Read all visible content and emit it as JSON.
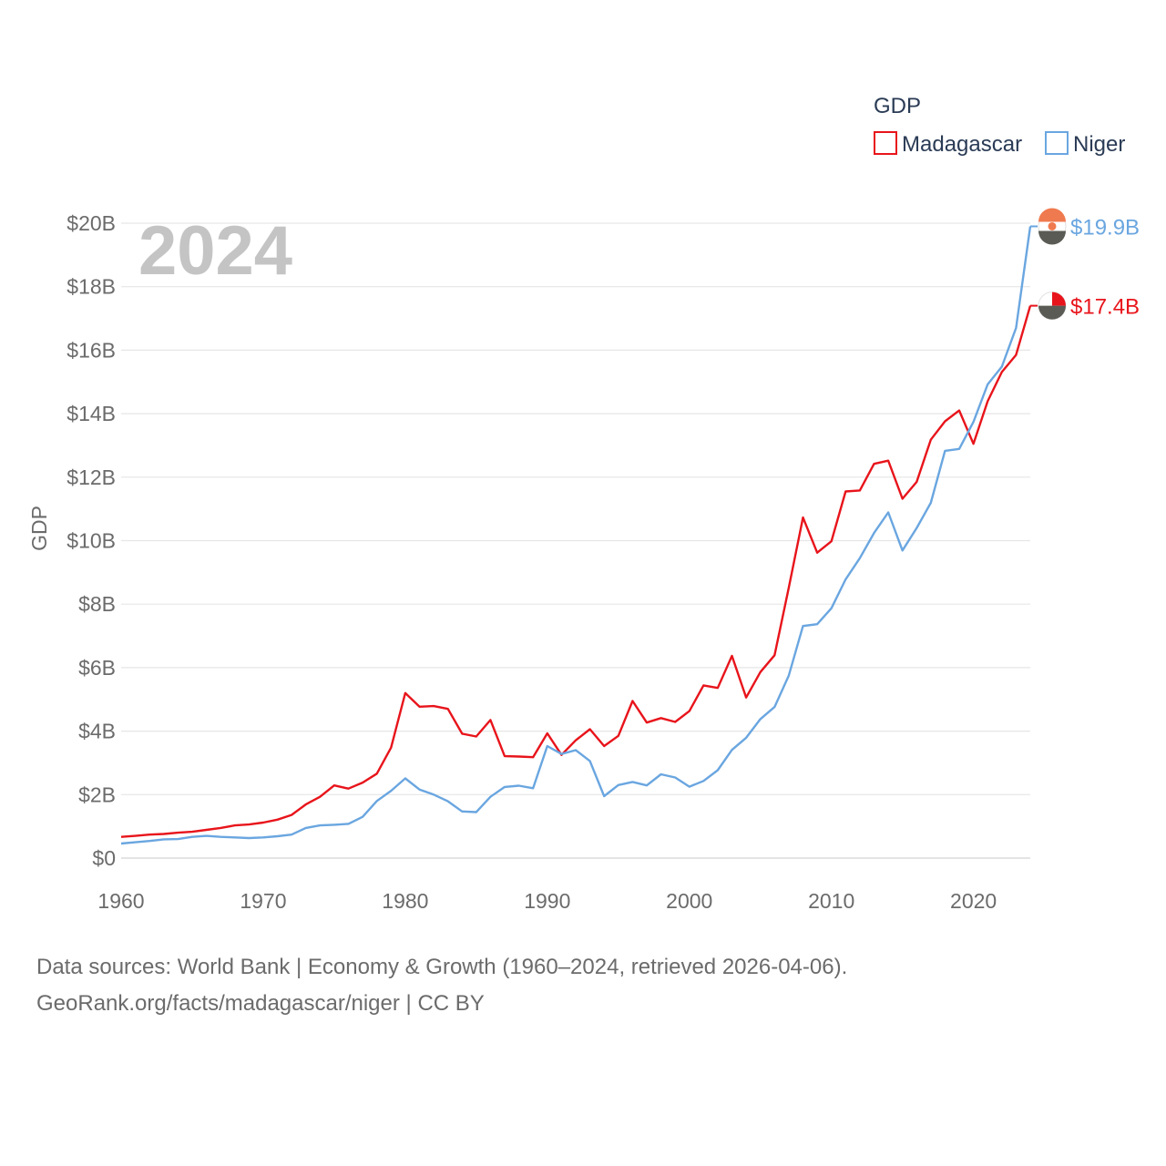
{
  "chart_data": {
    "type": "line",
    "title": "",
    "year_label": "2024",
    "xlabel": "",
    "ylabel": "GDP",
    "xlim": [
      1960,
      2024
    ],
    "ylim": [
      0,
      20
    ],
    "x_ticks": [
      1960,
      1970,
      1980,
      1990,
      2000,
      2010,
      2020
    ],
    "y_ticks": [
      {
        "value": 0,
        "label": "$0"
      },
      {
        "value": 2,
        "label": "$2B"
      },
      {
        "value": 4,
        "label": "$4B"
      },
      {
        "value": 6,
        "label": "$6B"
      },
      {
        "value": 8,
        "label": "$8B"
      },
      {
        "value": 10,
        "label": "$10B"
      },
      {
        "value": 12,
        "label": "$12B"
      },
      {
        "value": 14,
        "label": "$14B"
      },
      {
        "value": 16,
        "label": "$16B"
      },
      {
        "value": 18,
        "label": "$18B"
      },
      {
        "value": 20,
        "label": "$20B"
      }
    ],
    "legend_title": "GDP",
    "legend_position": "top-right",
    "x": [
      1960,
      1961,
      1962,
      1963,
      1964,
      1965,
      1966,
      1967,
      1968,
      1969,
      1970,
      1971,
      1972,
      1973,
      1974,
      1975,
      1976,
      1977,
      1978,
      1979,
      1980,
      1981,
      1982,
      1983,
      1984,
      1985,
      1986,
      1987,
      1988,
      1989,
      1990,
      1991,
      1992,
      1993,
      1994,
      1995,
      1996,
      1997,
      1998,
      1999,
      2000,
      2001,
      2002,
      2003,
      2004,
      2005,
      2006,
      2007,
      2008,
      2009,
      2010,
      2011,
      2012,
      2013,
      2014,
      2015,
      2016,
      2017,
      2018,
      2019,
      2020,
      2021,
      2022,
      2023,
      2024
    ],
    "series": [
      {
        "name": "Madagascar",
        "color": "#e8141b",
        "end_label": "$17.4B",
        "values": [
          0.67,
          0.7,
          0.74,
          0.76,
          0.8,
          0.83,
          0.89,
          0.95,
          1.03,
          1.06,
          1.12,
          1.21,
          1.36,
          1.69,
          1.93,
          2.29,
          2.19,
          2.38,
          2.66,
          3.48,
          5.2,
          4.77,
          4.79,
          4.7,
          3.92,
          3.83,
          4.35,
          3.21,
          3.2,
          3.18,
          3.93,
          3.25,
          3.71,
          4.06,
          3.53,
          3.85,
          4.95,
          4.27,
          4.41,
          4.29,
          4.63,
          5.44,
          5.36,
          6.37,
          5.06,
          5.86,
          6.39,
          8.52,
          10.73,
          9.62,
          9.98,
          11.55,
          11.58,
          12.42,
          12.52,
          11.32,
          11.85,
          13.18,
          13.76,
          14.1,
          13.05,
          14.39,
          15.31,
          15.85,
          17.4
        ]
      },
      {
        "name": "Niger",
        "color": "#6aa6e0",
        "end_label": "$19.9B",
        "values": [
          0.46,
          0.5,
          0.54,
          0.59,
          0.6,
          0.67,
          0.7,
          0.67,
          0.65,
          0.63,
          0.65,
          0.69,
          0.74,
          0.95,
          1.03,
          1.05,
          1.08,
          1.3,
          1.8,
          2.12,
          2.51,
          2.16,
          2.0,
          1.79,
          1.47,
          1.45,
          1.93,
          2.24,
          2.28,
          2.2,
          3.53,
          3.28,
          3.4,
          3.06,
          1.95,
          2.3,
          2.4,
          2.29,
          2.64,
          2.54,
          2.25,
          2.43,
          2.77,
          3.41,
          3.79,
          4.38,
          4.76,
          5.75,
          7.31,
          7.37,
          7.87,
          8.78,
          9.45,
          10.24,
          10.89,
          9.69,
          10.4,
          11.19,
          12.83,
          12.89,
          13.74,
          14.92,
          15.48,
          16.7,
          19.9
        ]
      }
    ]
  },
  "source": {
    "line1": "Data sources: World Bank | Economy & Growth (1960–2024, retrieved 2026-04-06).",
    "line2": "GeoRank.org/facts/madagascar/niger | CC BY"
  }
}
